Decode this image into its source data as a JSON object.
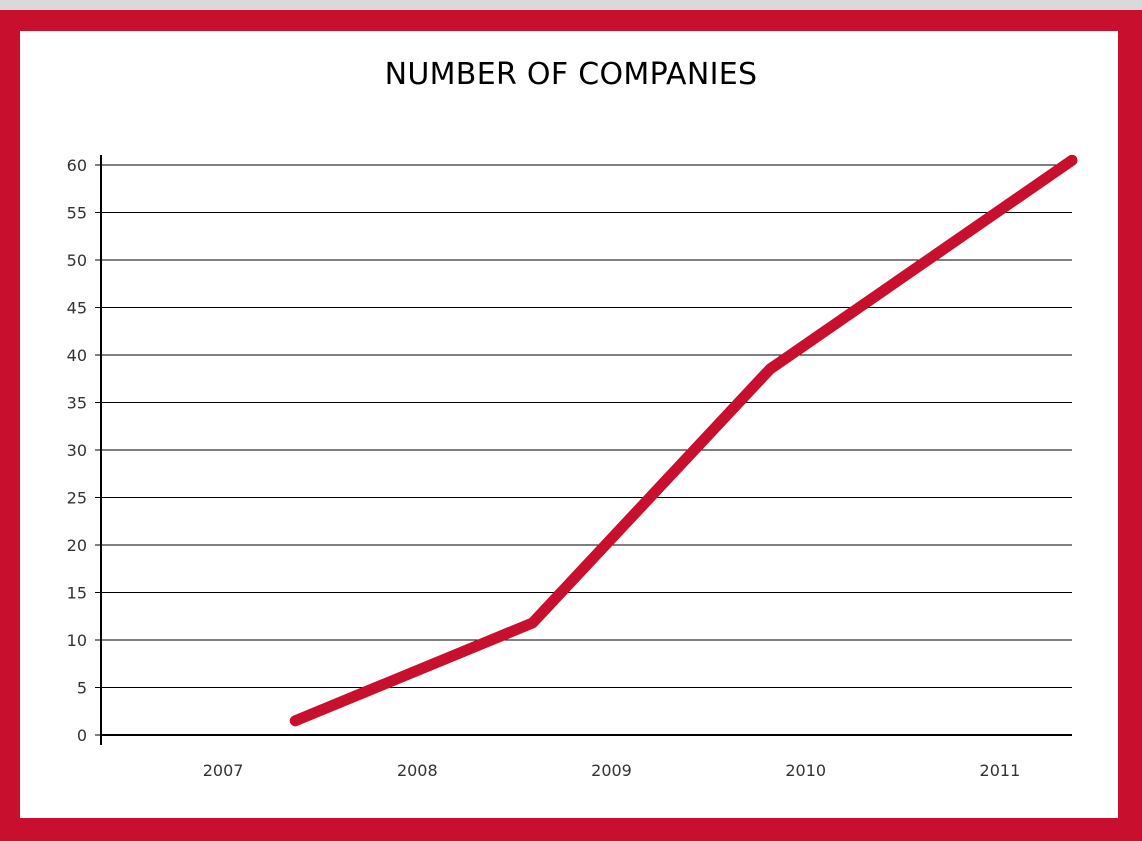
{
  "chart_data": {
    "type": "line",
    "title": "NUMBER OF COMPANIES",
    "xlabel": "",
    "ylabel": "",
    "x_ticks": [
      "2007",
      "2008",
      "2009",
      "2010",
      "2011"
    ],
    "y_ticks": [
      0,
      5,
      10,
      15,
      20,
      25,
      30,
      35,
      40,
      45,
      50,
      55,
      60
    ],
    "ylim": [
      0,
      60
    ],
    "xlim": [
      2006.5,
      2011
    ],
    "grid": true,
    "legend": "none",
    "series": [
      {
        "color": "#c8102e",
        "x": [
          2007.4,
          2008.5,
          2009.6,
          2011
        ],
        "y": [
          1.5,
          11.8,
          38.5,
          60.5
        ]
      }
    ]
  },
  "colors": {
    "frame": "#c8102e",
    "page_background": "#d9d9d9",
    "panel": "#ffffff",
    "grid": "#000000"
  }
}
